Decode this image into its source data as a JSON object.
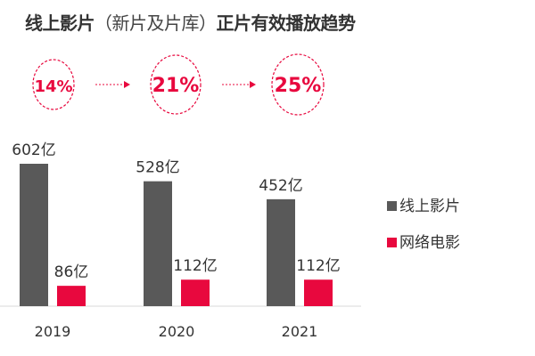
{
  "title": {
    "main": "线上影片",
    "paren": "（新片及片库）",
    "tail": "正片有效播放趋势"
  },
  "growth": {
    "values": [
      "14%",
      "21%",
      "25%"
    ],
    "color": "#e8083e"
  },
  "chart_data": {
    "type": "bar",
    "categories": [
      "2019",
      "2020",
      "2021"
    ],
    "series": [
      {
        "name": "线上影片",
        "values": [
          602,
          528,
          452
        ],
        "labels": [
          "602亿",
          "528亿",
          "452亿"
        ],
        "color": "#595959"
      },
      {
        "name": "网络电影",
        "values": [
          86,
          112,
          112
        ],
        "labels": [
          "86亿",
          "112亿",
          "112亿"
        ],
        "color": "#e8083e"
      }
    ],
    "legend": "right",
    "grid": false,
    "ylim": [
      0,
      602
    ]
  }
}
